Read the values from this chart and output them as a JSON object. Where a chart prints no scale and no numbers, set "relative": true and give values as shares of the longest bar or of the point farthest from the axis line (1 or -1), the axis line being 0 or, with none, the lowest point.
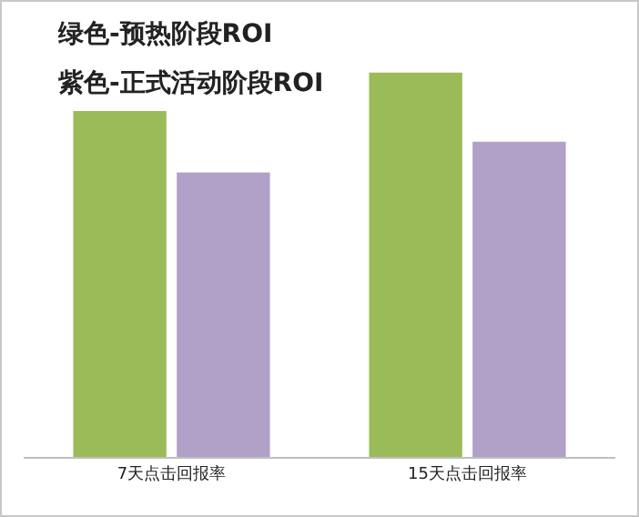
{
  "chart_data": {
    "type": "bar",
    "relative": true,
    "categories": [
      "7天点击回报率",
      "15天点击回报率"
    ],
    "series": [
      {
        "color": "#9bbb59",
        "values": [
          0.9,
          1
        ]
      },
      {
        "color": "#b1a0c7",
        "values": [
          0.74,
          0.82
        ]
      }
    ],
    "annotations": [
      "绿色-预热阶段ROI",
      "紫色-正式活动阶段ROI"
    ]
  }
}
